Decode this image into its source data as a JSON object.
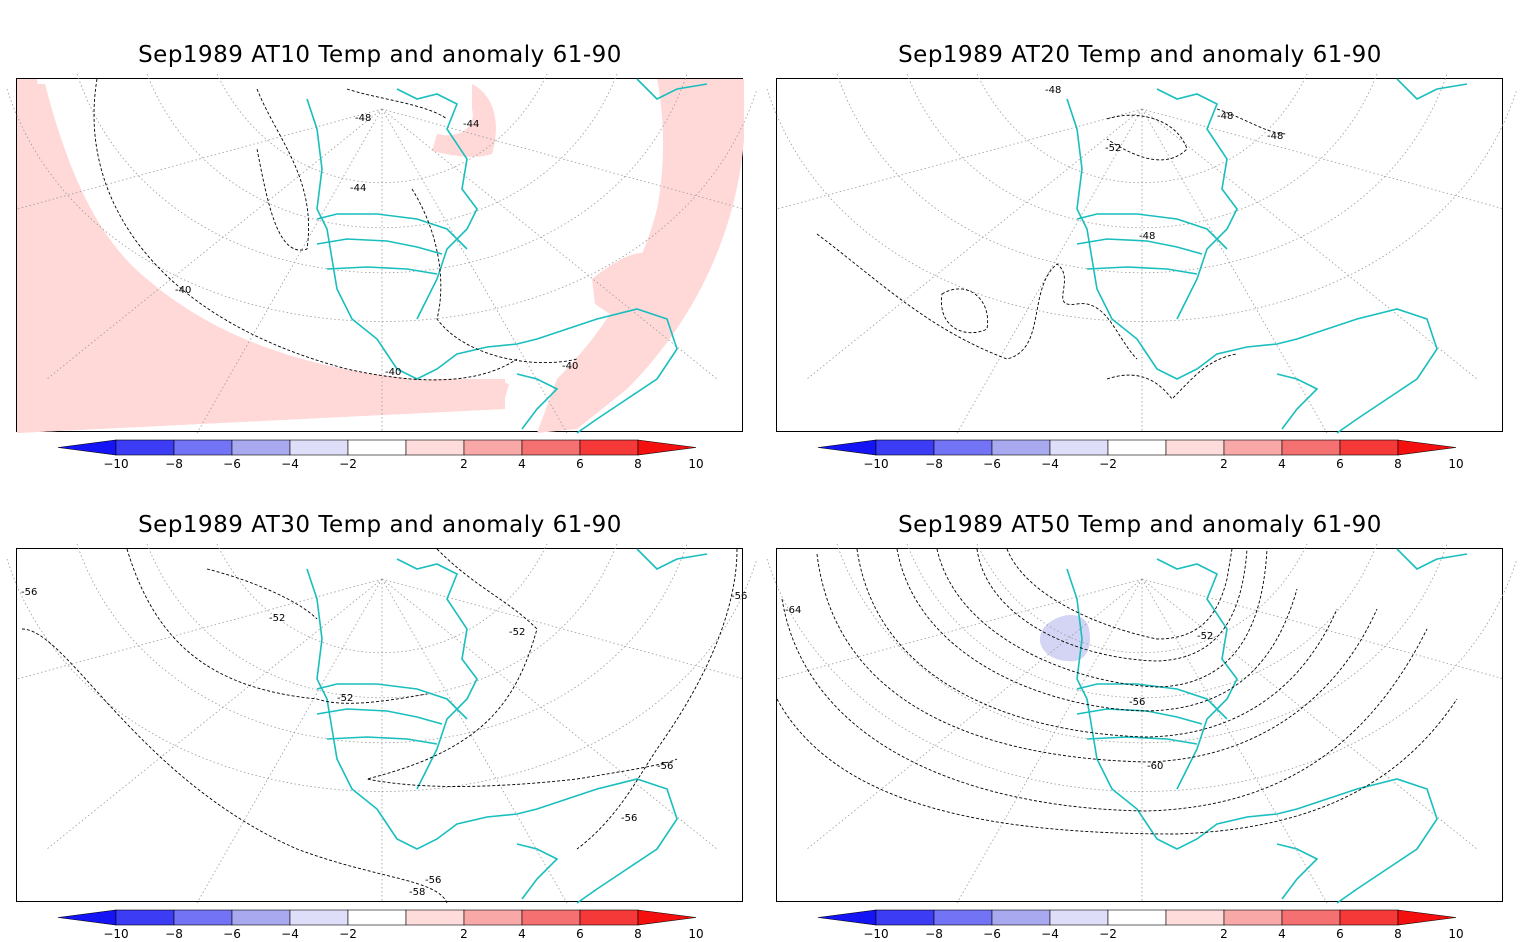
{
  "panels": [
    {
      "title": "Sep1989 AT10 Temp and anomaly 61-90",
      "contour_labels": [
        "-48",
        "-44",
        "-44",
        "-40",
        "-40",
        "-40"
      ],
      "anomaly_shading": "positive-ring"
    },
    {
      "title": "Sep1989 AT20 Temp and anomaly 61-90",
      "contour_labels": [
        "-48",
        "-52",
        "-48",
        "-48",
        "-48"
      ],
      "anomaly_shading": "none"
    },
    {
      "title": "Sep1989 AT30 Temp and anomaly 61-90",
      "contour_labels": [
        "-56",
        "-52",
        "-52",
        "-52",
        "-56",
        "-56",
        "-56",
        "-58",
        "-56"
      ],
      "anomaly_shading": "none"
    },
    {
      "title": "Sep1989 AT50 Temp and anomaly 61-90",
      "contour_labels": [
        "-64",
        "-52",
        "-56",
        "-60"
      ],
      "anomaly_shading": "negative-patch"
    }
  ],
  "colorbar": {
    "tick_labels": [
      "−10",
      "−8",
      "−6",
      "−4",
      "−2",
      "2",
      "4",
      "6",
      "8",
      "10"
    ],
    "colors": [
      "#1414f5",
      "#3c3cf5",
      "#7373f5",
      "#a9a9f0",
      "#dedef8",
      "#ffffff",
      "#ffdcdc",
      "#f9a8a8",
      "#f57070",
      "#f53838",
      "#f51010"
    ]
  },
  "colors": {
    "coast": "#19bebe",
    "contour": "#000000",
    "grid": "#9a9a9a",
    "positive_anomaly": "#ffd8d8",
    "negative_anomaly": "#d4d4f4"
  }
}
